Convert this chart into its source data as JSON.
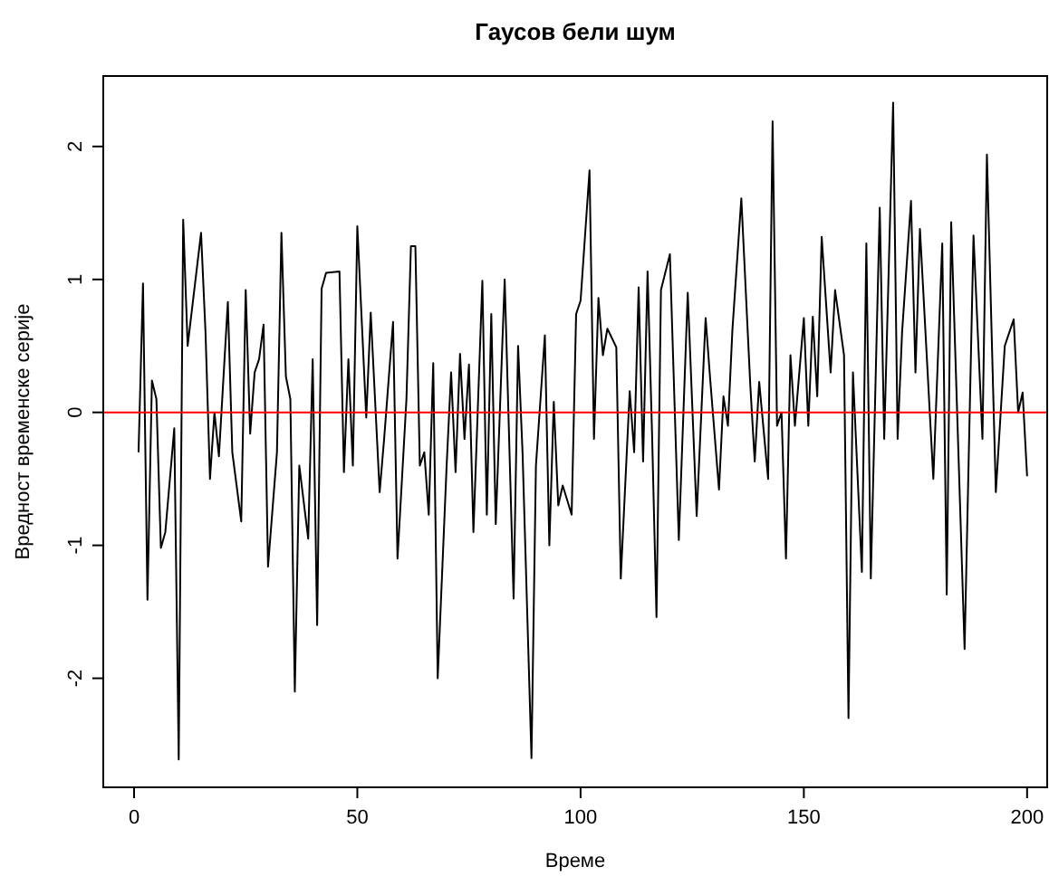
{
  "chart_data": {
    "type": "line",
    "title": "Гаусов бели шум",
    "xlabel": "Време",
    "ylabel": "Вредност временске серије",
    "x": [
      1,
      2,
      3,
      4,
      5,
      6,
      7,
      9,
      10,
      11,
      12,
      15,
      16,
      17,
      18,
      19,
      21,
      22,
      24,
      25,
      26,
      27,
      28,
      29,
      30,
      32,
      33,
      34,
      35,
      36,
      37,
      39,
      40,
      41,
      42,
      43,
      46,
      47,
      48,
      49,
      50,
      52,
      53,
      55,
      56,
      58,
      59,
      61,
      62,
      63,
      64,
      65,
      66,
      67,
      68,
      70,
      71,
      72,
      73,
      74,
      75,
      76,
      78,
      79,
      80,
      81,
      83,
      85,
      86,
      87,
      89,
      90,
      92,
      93,
      94,
      95,
      96,
      98,
      99,
      100,
      102,
      103,
      104,
      105,
      106,
      108,
      109,
      111,
      112,
      113,
      114,
      115,
      116,
      117,
      118,
      120,
      122,
      124,
      126,
      128,
      129,
      131,
      132,
      133,
      134,
      136,
      138,
      139,
      140,
      142,
      143,
      144,
      145,
      146,
      147,
      148,
      150,
      151,
      152,
      153,
      154,
      156,
      157,
      159,
      160,
      161,
      163,
      164,
      165,
      167,
      168,
      170,
      171,
      172,
      174,
      175,
      176,
      179,
      181,
      182,
      183,
      186,
      188,
      190,
      191,
      193,
      195,
      197,
      198,
      199,
      200
    ],
    "series": [
      {
        "color": "#000000",
        "values": [
          -0.3,
          0.97,
          -1.41,
          0.24,
          0.1,
          -1.02,
          -0.9,
          -0.12,
          -2.61,
          1.45,
          0.5,
          1.35,
          0.6,
          -0.5,
          0,
          -0.33,
          0.83,
          -0.3,
          -0.82,
          0.92,
          -0.16,
          0.3,
          0.4,
          0.66,
          -1.16,
          -0.3,
          1.35,
          0.27,
          0.1,
          -2.1,
          -0.4,
          -0.95,
          0.4,
          -1.6,
          0.93,
          1.05,
          1.06,
          -0.45,
          0.4,
          -0.4,
          1.4,
          -0.04,
          0.75,
          -0.6,
          -0.2,
          0.68,
          -1.1,
          0.1,
          1.25,
          1.25,
          -0.4,
          -0.3,
          -0.77,
          0.37,
          -2.0,
          -0.4,
          0.3,
          -0.45,
          0.44,
          -0.2,
          0.36,
          -0.9,
          0.99,
          -0.77,
          0.74,
          -0.84,
          1.0,
          -1.4,
          0.5,
          -0.3,
          -2.6,
          -0.4,
          0.58,
          -1.0,
          0.08,
          -0.7,
          -0.55,
          -0.77,
          0.74,
          0.84,
          1.82,
          -0.2,
          0.86,
          0.43,
          0.63,
          0.49,
          -1.25,
          0.16,
          -0.3,
          0.94,
          -0.37,
          1.06,
          -0.15,
          -1.54,
          0.92,
          1.19,
          -0.96,
          0.9,
          -0.78,
          0.71,
          0.26,
          -0.58,
          0.12,
          -0.1,
          0.62,
          1.61,
          0.21,
          -0.37,
          0.23,
          -0.5,
          2.19,
          -0.1,
          0,
          -1.1,
          0.43,
          -0.1,
          0.71,
          -0.1,
          0.72,
          0.12,
          1.32,
          0.3,
          0.92,
          0.43,
          -2.3,
          0.3,
          -1.2,
          1.27,
          -1.25,
          1.54,
          -0.2,
          2.33,
          -0.2,
          0.6,
          1.59,
          0.3,
          1.38,
          -0.5,
          1.27,
          -1.37,
          1.43,
          -1.78,
          1.33,
          -0.2,
          1.94,
          -0.6,
          0.5,
          0.7,
          0,
          0.15,
          -0.48
        ]
      }
    ],
    "xlim": [
      -6.9,
      204.5
    ],
    "ylim": [
      -2.82,
      2.53
    ],
    "xticks": [
      0,
      50,
      100,
      150,
      200
    ],
    "yticks": [
      -2,
      -1,
      0,
      1,
      2
    ],
    "ref_lines": [
      {
        "axis": "y",
        "value": 0,
        "color": "#ff0000"
      }
    ],
    "grid": false,
    "marker": "none",
    "line_style": "solid"
  }
}
